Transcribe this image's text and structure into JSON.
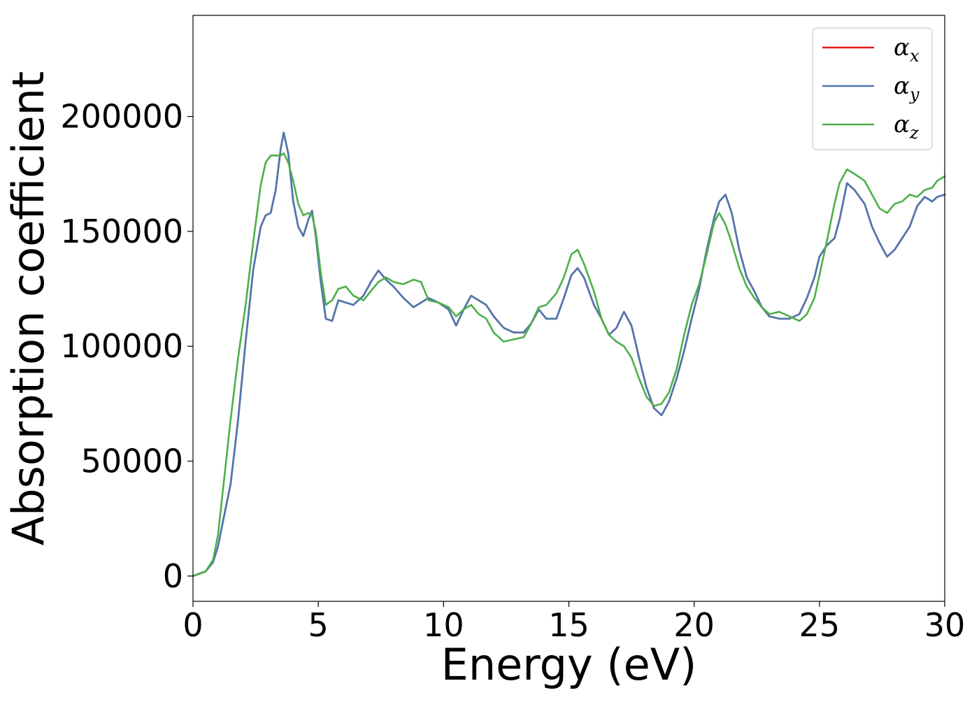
{
  "chart_data": {
    "type": "line",
    "title": "",
    "xlabel": "Energy (eV)",
    "ylabel": "Absorption coefficient",
    "xlim": [
      0,
      30
    ],
    "ylim": [
      -11000,
      244000
    ],
    "xticks": [
      "0",
      "5",
      "10",
      "15",
      "20",
      "25",
      "30"
    ],
    "yticks": [
      "0",
      "50000",
      "100000",
      "150000",
      "200000"
    ],
    "grid": false,
    "legend_position": "top-right",
    "series": [
      {
        "name": "α_x",
        "label_base": "α",
        "label_sub": "x",
        "color": "#e41a1c",
        "x": [
          0,
          0.5,
          0.8,
          1.0,
          1.2,
          1.5,
          1.8,
          2.1,
          2.4,
          2.7,
          2.9,
          3.1,
          3.3,
          3.5,
          3.62,
          3.8,
          4.0,
          4.2,
          4.4,
          4.6,
          4.75,
          4.9,
          5.1,
          5.3,
          5.55,
          5.8,
          6.1,
          6.4,
          6.8,
          7.1,
          7.4,
          7.7,
          8.0,
          8.4,
          8.8,
          9.1,
          9.4,
          9.8,
          10.2,
          10.5,
          10.8,
          11.1,
          11.4,
          11.7,
          12.0,
          12.4,
          12.8,
          13.2,
          13.5,
          13.8,
          14.1,
          14.5,
          14.8,
          15.1,
          15.35,
          15.6,
          16.0,
          16.3,
          16.6,
          16.9,
          17.2,
          17.5,
          17.8,
          18.1,
          18.4,
          18.7,
          19.0,
          19.3,
          19.6,
          19.9,
          20.2,
          20.5,
          20.8,
          21.0,
          21.25,
          21.5,
          21.8,
          22.1,
          22.4,
          22.7,
          23.0,
          23.4,
          23.8,
          24.2,
          24.5,
          24.8,
          25.0,
          25.3,
          25.6,
          25.8,
          26.1,
          26.4,
          26.8,
          27.1,
          27.4,
          27.7,
          28.0,
          28.3,
          28.6,
          28.9,
          29.2,
          29.5,
          29.7,
          30.0
        ],
        "values": [
          0,
          2000,
          6000,
          13000,
          24000,
          40000,
          68000,
          102000,
          133000,
          152000,
          157000,
          158000,
          168000,
          186000,
          193000,
          184000,
          163000,
          152000,
          148000,
          155000,
          159000,
          148000,
          128000,
          112000,
          111000,
          120000,
          119000,
          118000,
          122000,
          128000,
          133000,
          129000,
          126000,
          121000,
          117000,
          119000,
          121000,
          119000,
          116000,
          109000,
          116000,
          122000,
          120000,
          118000,
          113000,
          108000,
          106000,
          106000,
          110000,
          116000,
          112000,
          112000,
          121000,
          131000,
          134000,
          130000,
          118000,
          112000,
          105000,
          108000,
          115000,
          109000,
          95000,
          82000,
          73000,
          70000,
          76000,
          86000,
          98000,
          112000,
          125000,
          142000,
          156000,
          163000,
          166000,
          158000,
          142000,
          130000,
          124000,
          117000,
          113000,
          112000,
          112000,
          114000,
          121000,
          130000,
          139000,
          144000,
          147000,
          155000,
          171000,
          168000,
          162000,
          152000,
          145000,
          139000,
          142000,
          147000,
          152000,
          161000,
          165000,
          163000,
          165000,
          166000
        ]
      },
      {
        "name": "α_y",
        "label_base": "α",
        "label_sub": "y",
        "color": "#4a78b1",
        "x": [
          0,
          0.5,
          0.8,
          1.0,
          1.2,
          1.5,
          1.8,
          2.1,
          2.4,
          2.7,
          2.9,
          3.1,
          3.3,
          3.5,
          3.62,
          3.8,
          4.0,
          4.2,
          4.4,
          4.6,
          4.75,
          4.9,
          5.1,
          5.3,
          5.55,
          5.8,
          6.1,
          6.4,
          6.8,
          7.1,
          7.4,
          7.7,
          8.0,
          8.4,
          8.8,
          9.1,
          9.4,
          9.8,
          10.2,
          10.5,
          10.8,
          11.1,
          11.4,
          11.7,
          12.0,
          12.4,
          12.8,
          13.2,
          13.5,
          13.8,
          14.1,
          14.5,
          14.8,
          15.1,
          15.35,
          15.6,
          16.0,
          16.3,
          16.6,
          16.9,
          17.2,
          17.5,
          17.8,
          18.1,
          18.4,
          18.7,
          19.0,
          19.3,
          19.6,
          19.9,
          20.2,
          20.5,
          20.8,
          21.0,
          21.25,
          21.5,
          21.8,
          22.1,
          22.4,
          22.7,
          23.0,
          23.4,
          23.8,
          24.2,
          24.5,
          24.8,
          25.0,
          25.3,
          25.6,
          25.8,
          26.1,
          26.4,
          26.8,
          27.1,
          27.4,
          27.7,
          28.0,
          28.3,
          28.6,
          28.9,
          29.2,
          29.5,
          29.7,
          30.0
        ],
        "values": [
          0,
          2000,
          6000,
          13000,
          24000,
          40000,
          68000,
          102000,
          133000,
          152000,
          157000,
          158000,
          168000,
          186000,
          193000,
          184000,
          163000,
          152000,
          148000,
          155000,
          159000,
          148000,
          128000,
          112000,
          111000,
          120000,
          119000,
          118000,
          122000,
          128000,
          133000,
          129000,
          126000,
          121000,
          117000,
          119000,
          121000,
          119000,
          116000,
          109000,
          116000,
          122000,
          120000,
          118000,
          113000,
          108000,
          106000,
          106000,
          110000,
          116000,
          112000,
          112000,
          121000,
          131000,
          134000,
          130000,
          118000,
          112000,
          105000,
          108000,
          115000,
          109000,
          95000,
          82000,
          73000,
          70000,
          76000,
          86000,
          98000,
          112000,
          125000,
          142000,
          156000,
          163000,
          166000,
          158000,
          142000,
          130000,
          124000,
          117000,
          113000,
          112000,
          112000,
          114000,
          121000,
          130000,
          139000,
          144000,
          147000,
          155000,
          171000,
          168000,
          162000,
          152000,
          145000,
          139000,
          142000,
          147000,
          152000,
          161000,
          165000,
          163000,
          165000,
          166000
        ]
      },
      {
        "name": "α_z",
        "label_base": "α",
        "label_sub": "z",
        "color": "#4daf4a",
        "x": [
          0,
          0.5,
          0.8,
          1.0,
          1.2,
          1.5,
          1.8,
          2.1,
          2.4,
          2.7,
          2.9,
          3.1,
          3.3,
          3.5,
          3.62,
          3.8,
          4.0,
          4.2,
          4.4,
          4.6,
          4.75,
          4.9,
          5.1,
          5.3,
          5.55,
          5.8,
          6.1,
          6.4,
          6.8,
          7.1,
          7.4,
          7.7,
          8.0,
          8.4,
          8.8,
          9.1,
          9.4,
          9.8,
          10.2,
          10.5,
          10.8,
          11.1,
          11.4,
          11.7,
          12.0,
          12.4,
          12.8,
          13.2,
          13.5,
          13.8,
          14.1,
          14.5,
          14.8,
          15.1,
          15.35,
          15.6,
          16.0,
          16.3,
          16.6,
          16.9,
          17.2,
          17.5,
          17.8,
          18.1,
          18.4,
          18.7,
          19.0,
          19.3,
          19.6,
          19.9,
          20.2,
          20.5,
          20.8,
          21.0,
          21.25,
          21.5,
          21.8,
          22.1,
          22.4,
          22.7,
          23.0,
          23.4,
          23.8,
          24.2,
          24.5,
          24.8,
          25.0,
          25.3,
          25.6,
          25.8,
          26.1,
          26.4,
          26.8,
          27.1,
          27.4,
          27.7,
          28.0,
          28.3,
          28.6,
          28.9,
          29.2,
          29.5,
          29.7,
          30.0
        ],
        "values": [
          0,
          2000,
          7000,
          18000,
          38000,
          68000,
          95000,
          118000,
          145000,
          170000,
          180000,
          183000,
          183000,
          183000,
          184000,
          180000,
          172000,
          162000,
          157000,
          158000,
          157000,
          150000,
          132000,
          118000,
          120000,
          125000,
          126000,
          122000,
          120000,
          124000,
          128000,
          130000,
          128000,
          127000,
          129000,
          128000,
          120000,
          119000,
          117000,
          113000,
          116000,
          118000,
          114000,
          112000,
          106000,
          102000,
          103000,
          104000,
          110000,
          117000,
          118000,
          123000,
          130000,
          140000,
          142000,
          136000,
          124000,
          112000,
          105000,
          102000,
          100000,
          95000,
          86000,
          78000,
          74000,
          75000,
          80000,
          90000,
          105000,
          118000,
          127000,
          140000,
          154000,
          158000,
          153000,
          145000,
          134000,
          126000,
          121000,
          117000,
          114000,
          115000,
          113000,
          111000,
          114000,
          121000,
          131000,
          146000,
          162000,
          171000,
          177000,
          175000,
          172000,
          166000,
          160000,
          158000,
          162000,
          163000,
          166000,
          165000,
          168000,
          169000,
          172000,
          174000
        ]
      }
    ]
  }
}
